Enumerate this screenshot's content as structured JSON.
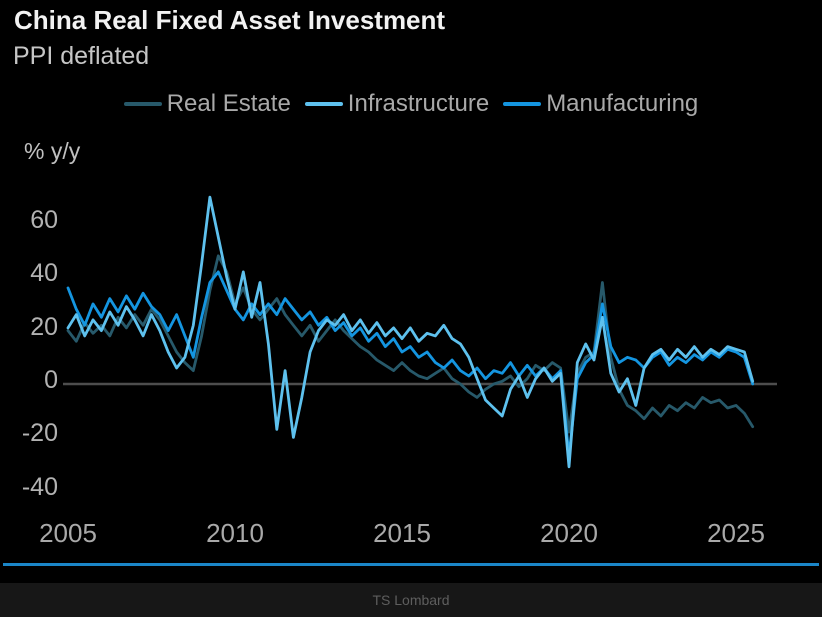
{
  "header": {
    "title": "China Real Fixed Asset Investment",
    "subtitle": "PPI deflated"
  },
  "unit_label": "% y/y",
  "footer": {
    "brand": "TS Lombard"
  },
  "colors": {
    "background": "#000000",
    "zero_axis_line": "#4d4d4d",
    "separator_line": "#1b86c8",
    "title_text": "#f2f2f2",
    "secondary_text": "#c6c6c6",
    "tick_text": "#aaaaaa",
    "real_estate": "#27596a",
    "infrastructure": "#5ec1ee",
    "manufacturing": "#1495e0"
  },
  "chart_data": {
    "type": "line",
    "title": "China Real Fixed Asset Investment",
    "subtitle": "PPI deflated",
    "ylabel": "% y/y",
    "xlabel": "",
    "x_start": 2005.0,
    "x_step": 0.25,
    "xlim": [
      2004.9,
      2026.2
    ],
    "ylim": [
      -45,
      75
    ],
    "yticks": [
      60,
      40,
      20,
      0,
      -20,
      -40
    ],
    "xticks": [
      2005,
      2010,
      2015,
      2020,
      2025
    ],
    "grid": "zero-line-only",
    "legend_position": "top",
    "series": [
      {
        "name": "Real Estate",
        "color": "#27596a",
        "values": [
          20,
          16,
          23,
          19,
          22,
          18,
          25,
          21,
          26,
          22,
          28,
          24,
          18,
          12,
          8,
          5,
          18,
          35,
          48,
          42,
          30,
          36,
          28,
          24,
          28,
          32,
          26,
          22,
          18,
          22,
          16,
          20,
          24,
          20,
          17,
          14,
          12,
          9,
          7,
          5,
          8,
          5,
          3,
          2,
          4,
          6,
          2,
          0,
          -3,
          -5,
          -2,
          0,
          1,
          3,
          -1,
          2,
          7,
          5,
          8,
          6,
          -18,
          4,
          10,
          12,
          38,
          10,
          -2,
          -8,
          -10,
          -13,
          -9,
          -12,
          -8,
          -10,
          -7,
          -9,
          -5,
          -7,
          -6,
          -9,
          -8,
          -11,
          -16
        ]
      },
      {
        "name": "Infrastructure",
        "color": "#5ec1ee",
        "values": [
          21,
          26,
          18,
          24,
          20,
          27,
          22,
          29,
          24,
          18,
          26,
          20,
          12,
          6,
          10,
          22,
          45,
          70,
          55,
          40,
          28,
          42,
          25,
          38,
          15,
          -17,
          5,
          -20,
          -5,
          12,
          20,
          24,
          22,
          26,
          20,
          24,
          19,
          23,
          18,
          21,
          17,
          21,
          16,
          19,
          18,
          22,
          17,
          15,
          10,
          2,
          -6,
          -9,
          -12,
          -2,
          3,
          -5,
          2,
          6,
          1,
          4,
          -31,
          8,
          15,
          9,
          25,
          4,
          -3,
          2,
          -8,
          6,
          11,
          13,
          9,
          13,
          10,
          14,
          10,
          13,
          11,
          14,
          13,
          12,
          1
        ]
      },
      {
        "name": "Manufacturing",
        "color": "#1495e0",
        "values": [
          36,
          28,
          22,
          30,
          25,
          32,
          27,
          33,
          28,
          34,
          29,
          26,
          20,
          26,
          18,
          10,
          25,
          38,
          42,
          35,
          28,
          24,
          30,
          26,
          30,
          26,
          32,
          28,
          24,
          27,
          22,
          25,
          20,
          23,
          18,
          21,
          16,
          19,
          14,
          17,
          12,
          14,
          10,
          12,
          8,
          6,
          9,
          5,
          3,
          6,
          2,
          5,
          4,
          8,
          3,
          7,
          3,
          6,
          2,
          5,
          -27,
          2,
          8,
          11,
          30,
          14,
          8,
          10,
          9,
          6,
          10,
          12,
          7,
          10,
          8,
          11,
          9,
          12,
          10,
          13,
          12,
          10,
          0
        ]
      }
    ]
  }
}
